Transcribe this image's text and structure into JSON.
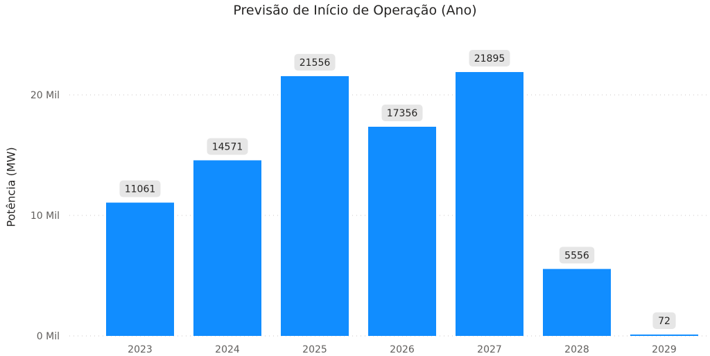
{
  "chart_data": {
    "type": "bar",
    "title": "Previsão de Início de Operação (Ano)",
    "ylabel": "Potência (MW)",
    "xlabel": "",
    "categories": [
      "2023",
      "2024",
      "2025",
      "2026",
      "2027",
      "2028",
      "2029"
    ],
    "values": [
      11061,
      14571,
      21556,
      17356,
      21895,
      5556,
      72
    ],
    "data_labels": [
      "11061",
      "14571",
      "21556",
      "17356",
      "21895",
      "5556",
      "72"
    ],
    "y_ticks": [
      {
        "value": 0,
        "label": "0 Mil"
      },
      {
        "value": 10000,
        "label": "10 Mil"
      },
      {
        "value": 20000,
        "label": "20 Mil"
      }
    ],
    "ylim": [
      0,
      25000
    ],
    "grid": "dotted horizontal",
    "bar_color": "#118DFF",
    "label_background": "#E6E6E6"
  }
}
